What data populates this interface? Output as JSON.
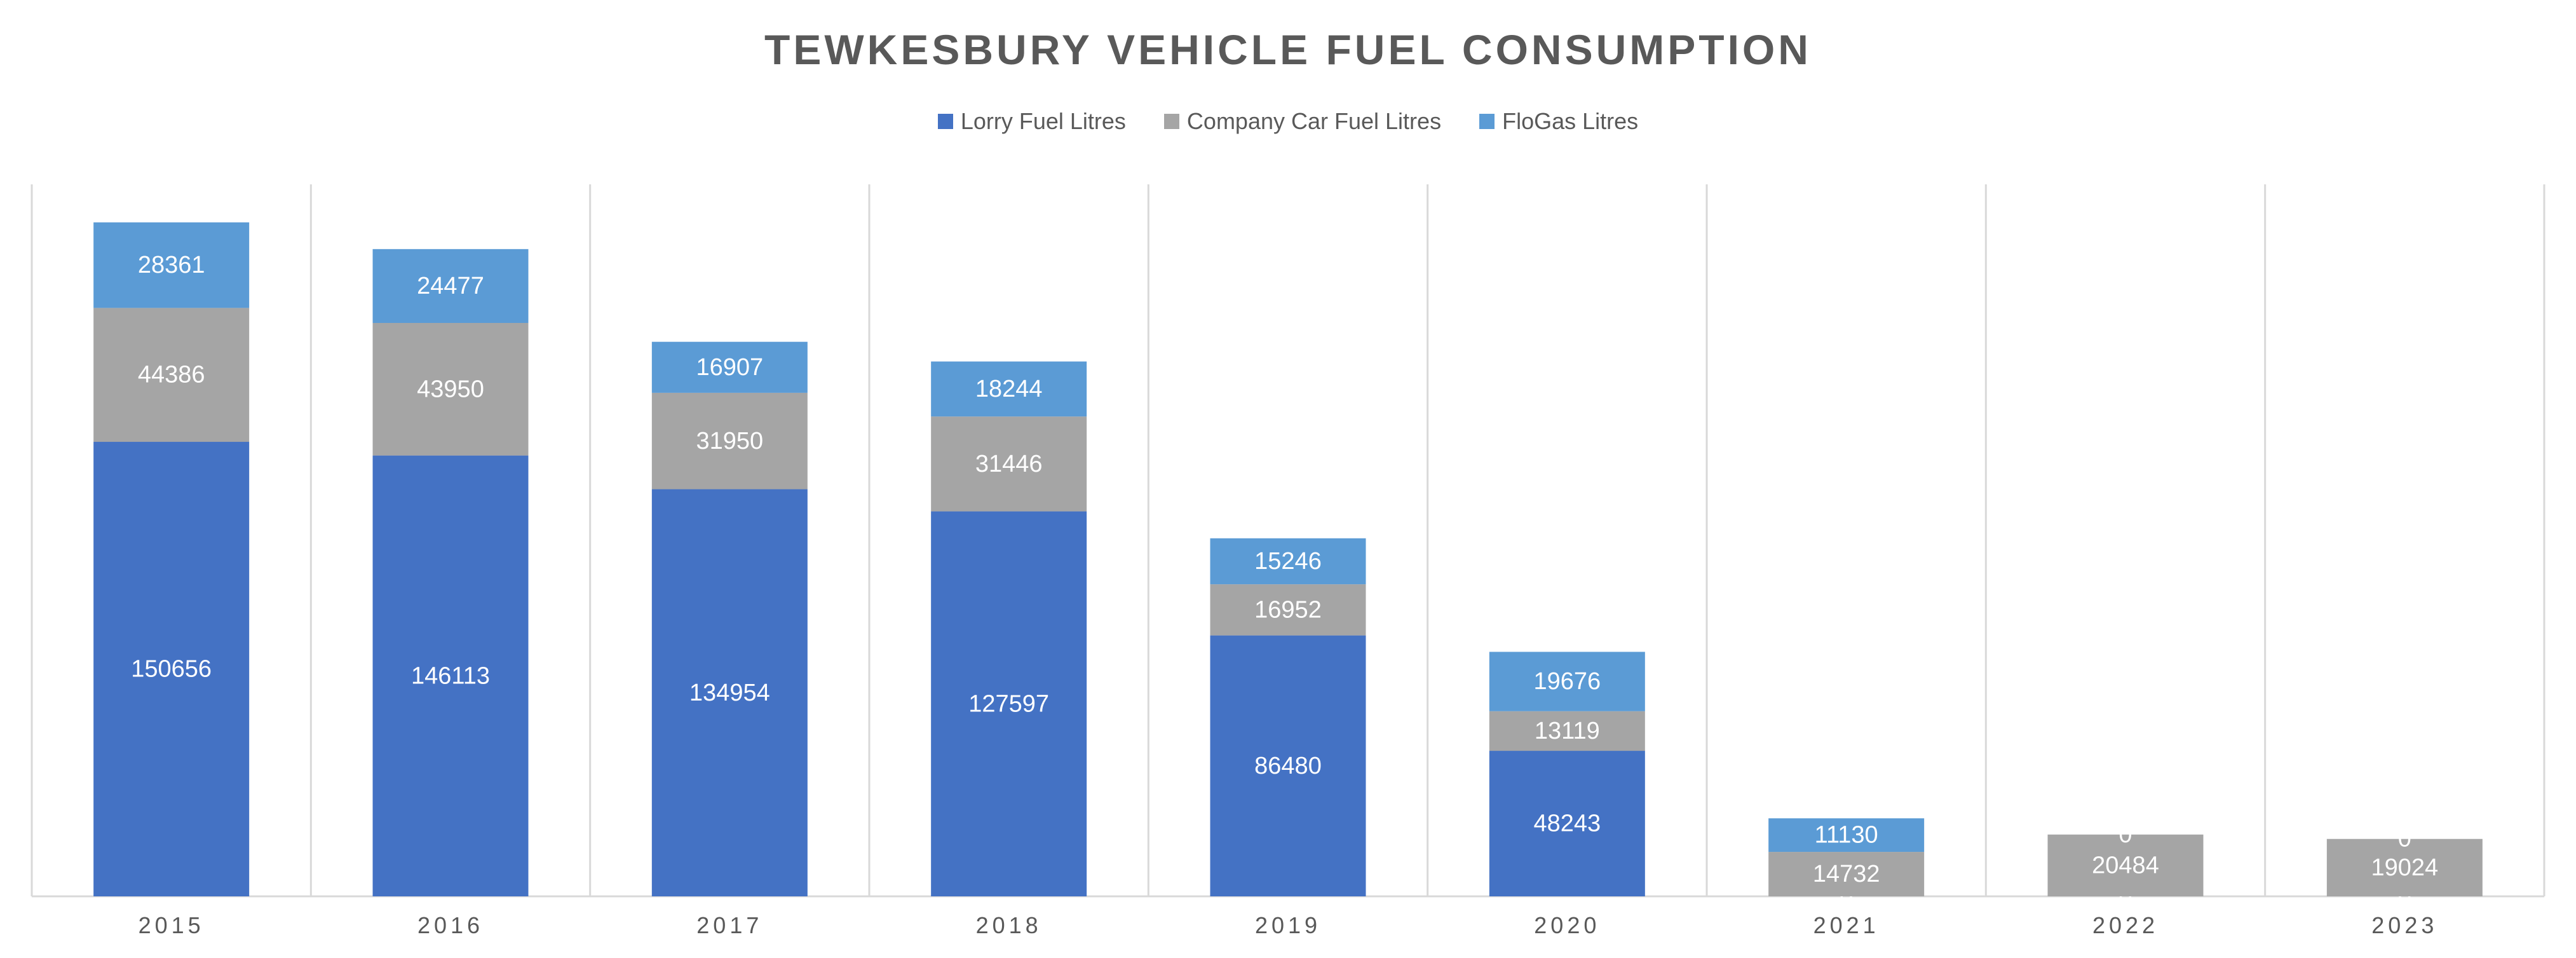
{
  "chart_data": {
    "type": "bar",
    "stacked": true,
    "title": "TEWKESBURY VEHICLE FUEL CONSUMPTION",
    "xlabel": "",
    "ylabel": "",
    "categories": [
      "2015",
      "2016",
      "2017",
      "2018",
      "2019",
      "2020",
      "2021",
      "2022",
      "2023"
    ],
    "series": [
      {
        "name": "Lorry Fuel Litres",
        "color": "#4472c4",
        "values": [
          150656,
          146113,
          134954,
          127597,
          86480,
          48243,
          0,
          0,
          0
        ]
      },
      {
        "name": "Company Car Fuel Litres",
        "color": "#a5a5a5",
        "values": [
          44386,
          43950,
          31950,
          31446,
          16952,
          13119,
          14732,
          20484,
          19024
        ]
      },
      {
        "name": "FloGas Litres",
        "color": "#5b9bd5",
        "values": [
          28361,
          24477,
          16907,
          18244,
          15246,
          19676,
          11130,
          0,
          0
        ]
      }
    ],
    "ylim": [
      0,
      236000
    ],
    "grid": "vertical category separators",
    "legend": "top-center"
  }
}
